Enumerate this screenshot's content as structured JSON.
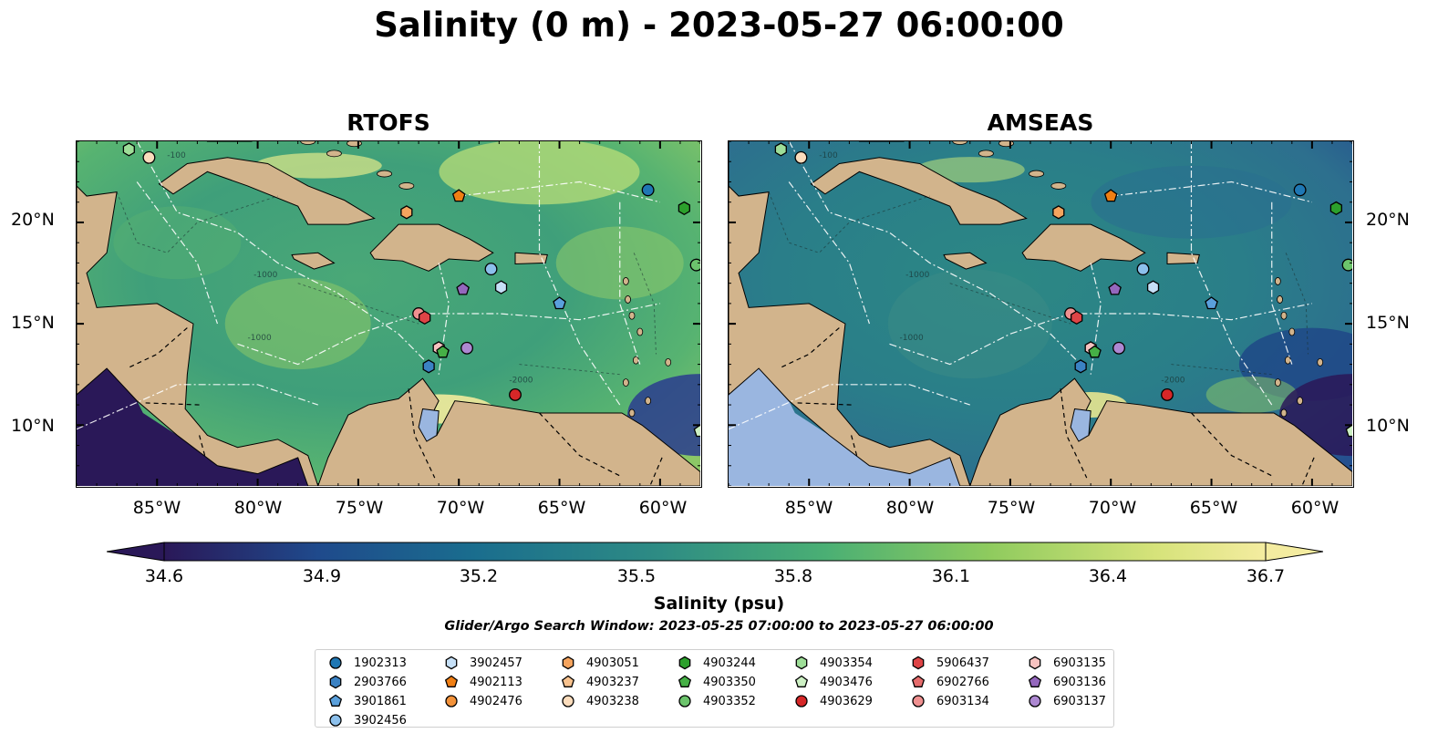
{
  "title": "Salinity (0 m) - 2023-05-27 06:00:00",
  "panels": [
    {
      "id": "rtofs",
      "title": "RTOFS"
    },
    {
      "id": "amseas",
      "title": "AMSEAS"
    }
  ],
  "map": {
    "lon_ticks": [
      "85°W",
      "80°W",
      "75°W",
      "70°W",
      "65°W",
      "60°W"
    ],
    "lat_ticks": [
      "20°N",
      "15°N",
      "10°N"
    ],
    "land_color": "#d2b48c",
    "lake_color": "#9ab6e0",
    "contour_labels": [
      "-100",
      "-1000",
      "-2000",
      "-1000"
    ]
  },
  "colorbar": {
    "label": "Salinity (psu)",
    "ticks": [
      "34.6",
      "34.9",
      "35.2",
      "35.5",
      "35.8",
      "36.1",
      "36.4",
      "36.7"
    ],
    "min": 34.6,
    "max": 36.7,
    "colormap": [
      "#2a1858",
      "#1f4a8c",
      "#1a6d8e",
      "#2e8c84",
      "#4aaf74",
      "#8fcb5e",
      "#d6e37a",
      "#f4eca0"
    ]
  },
  "search_window": "Glider/Argo Search Window: 2023-05-25 07:00:00 to 2023-05-27 06:00:00",
  "legend": {
    "items": [
      {
        "id": "1902313",
        "marker": "circle",
        "color": "#1f77b4"
      },
      {
        "id": "2903766",
        "marker": "hexagon",
        "color": "#3b82c4"
      },
      {
        "id": "3901861",
        "marker": "pentagon",
        "color": "#5aa0dc"
      },
      {
        "id": "3902456",
        "marker": "circle",
        "color": "#8cc0ec"
      },
      {
        "id": "3902457",
        "marker": "hexagon",
        "color": "#c6e0f7"
      },
      {
        "id": "4902113",
        "marker": "pentagon",
        "color": "#f07f14"
      },
      {
        "id": "4902476",
        "marker": "circle",
        "color": "#f3923a"
      },
      {
        "id": "4903051",
        "marker": "hexagon",
        "color": "#f5a45e"
      },
      {
        "id": "4903237",
        "marker": "pentagon",
        "color": "#f8c28e"
      },
      {
        "id": "4903238",
        "marker": "circle",
        "color": "#fbdcbc"
      },
      {
        "id": "4903244",
        "marker": "hexagon",
        "color": "#2ca02c"
      },
      {
        "id": "4903350",
        "marker": "pentagon",
        "color": "#46b046"
      },
      {
        "id": "4903352",
        "marker": "circle",
        "color": "#6cc46c"
      },
      {
        "id": "4903354",
        "marker": "hexagon",
        "color": "#9ede98"
      },
      {
        "id": "4903476",
        "marker": "pentagon",
        "color": "#cdf0c4"
      },
      {
        "id": "4903629",
        "marker": "circle",
        "color": "#d62728"
      },
      {
        "id": "5906437",
        "marker": "hexagon",
        "color": "#de4446"
      },
      {
        "id": "6902766",
        "marker": "pentagon",
        "color": "#e66c6c"
      },
      {
        "id": "6903134",
        "marker": "circle",
        "color": "#ef9090"
      },
      {
        "id": "6903135",
        "marker": "hexagon",
        "color": "#f7c2c0"
      },
      {
        "id": "6903136",
        "marker": "pentagon",
        "color": "#9467bd"
      },
      {
        "id": "6903137",
        "marker": "circle",
        "color": "#ad88d2"
      }
    ]
  },
  "observations": [
    {
      "id": "1902313",
      "lon": -60.6,
      "lat": 21.6
    },
    {
      "id": "4903244",
      "lon": -58.8,
      "lat": 20.7
    },
    {
      "id": "4903352",
      "lon": -58.2,
      "lat": 17.9
    },
    {
      "id": "4902113",
      "lon": -70.0,
      "lat": 21.3
    },
    {
      "id": "4903051",
      "lon": -72.6,
      "lat": 20.5
    },
    {
      "id": "4903238",
      "lon": -85.4,
      "lat": 23.2
    },
    {
      "id": "4903354",
      "lon": -86.4,
      "lat": 23.6
    },
    {
      "id": "3902456",
      "lon": -68.4,
      "lat": 17.7
    },
    {
      "id": "3902457",
      "lon": -67.9,
      "lat": 16.8
    },
    {
      "id": "6903136",
      "lon": -69.8,
      "lat": 16.7
    },
    {
      "id": "3901861",
      "lon": -65.0,
      "lat": 16.0
    },
    {
      "id": "6903134",
      "lon": -72.0,
      "lat": 15.5
    },
    {
      "id": "5906437",
      "lon": -71.7,
      "lat": 15.3
    },
    {
      "id": "6903135",
      "lon": -71.0,
      "lat": 13.8
    },
    {
      "id": "4903350",
      "lon": -70.8,
      "lat": 13.6
    },
    {
      "id": "6903137",
      "lon": -69.6,
      "lat": 13.8
    },
    {
      "id": "2903766",
      "lon": -71.5,
      "lat": 12.9
    },
    {
      "id": "4903629",
      "lon": -67.2,
      "lat": 11.5
    },
    {
      "id": "4903476",
      "lon": -58.0,
      "lat": 9.7
    }
  ]
}
